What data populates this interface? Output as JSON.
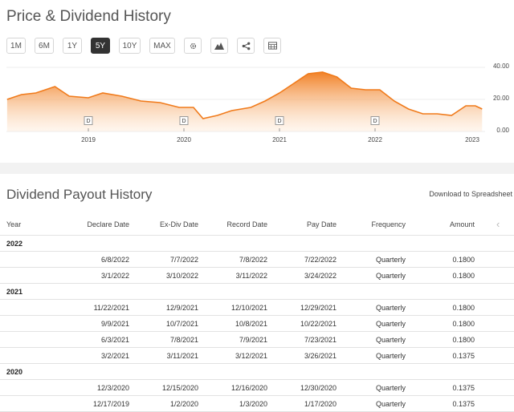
{
  "page": {
    "title": "Price & Dividend History",
    "section_title": "Dividend Payout History",
    "download": "Download to Spreadsheet"
  },
  "ranges": [
    "1M",
    "6M",
    "1Y",
    "5Y",
    "10Y",
    "MAX"
  ],
  "active_range": "5Y",
  "tool_icons": [
    "gear-icon",
    "mountain-icon",
    "share-icon",
    "table-icon"
  ],
  "colors": {
    "accent": "#f07a1a",
    "active": "#333333"
  },
  "chart_data": {
    "type": "area",
    "y_ticks": [
      "40.00",
      "20.00",
      "0.00"
    ],
    "ylim": [
      0,
      40
    ],
    "x_ticks": [
      "2019",
      "2020",
      "2021",
      "2022",
      "2023"
    ],
    "dividend_marker": "D",
    "dividend_dates": [
      2019.0,
      2020.0,
      2021.0,
      2022.0
    ],
    "x": [
      2018.15,
      2018.3,
      2018.45,
      2018.65,
      2018.8,
      2019.0,
      2019.15,
      2019.35,
      2019.55,
      2019.75,
      2019.95,
      2020.1,
      2020.2,
      2020.35,
      2020.5,
      2020.7,
      2020.85,
      2021.0,
      2021.15,
      2021.3,
      2021.45,
      2021.6,
      2021.75,
      2021.9,
      2022.05,
      2022.2,
      2022.35,
      2022.5,
      2022.65,
      2022.8,
      2022.95,
      2023.05,
      2023.12
    ],
    "y": [
      20,
      23,
      24,
      28,
      22,
      21,
      24,
      22,
      19,
      18,
      15,
      15,
      8,
      10,
      13,
      15,
      19,
      24,
      30,
      36,
      37,
      34,
      27,
      26,
      26,
      19,
      14,
      11,
      11,
      10,
      16,
      16,
      14
    ]
  },
  "table": {
    "headers": [
      "Year",
      "Declare Date",
      "Ex-Div Date",
      "Record Date",
      "Pay Date",
      "Frequency",
      "Amount"
    ],
    "nav_icon": "‹",
    "groups": [
      {
        "year": "2022",
        "rows": [
          [
            "6/8/2022",
            "7/7/2022",
            "7/8/2022",
            "7/22/2022",
            "Quarterly",
            "0.1800"
          ],
          [
            "3/1/2022",
            "3/10/2022",
            "3/11/2022",
            "3/24/2022",
            "Quarterly",
            "0.1800"
          ]
        ]
      },
      {
        "year": "2021",
        "rows": [
          [
            "11/22/2021",
            "12/9/2021",
            "12/10/2021",
            "12/29/2021",
            "Quarterly",
            "0.1800"
          ],
          [
            "9/9/2021",
            "10/7/2021",
            "10/8/2021",
            "10/22/2021",
            "Quarterly",
            "0.1800"
          ],
          [
            "6/3/2021",
            "7/8/2021",
            "7/9/2021",
            "7/23/2021",
            "Quarterly",
            "0.1800"
          ],
          [
            "3/2/2021",
            "3/11/2021",
            "3/12/2021",
            "3/26/2021",
            "Quarterly",
            "0.1375"
          ]
        ]
      },
      {
        "year": "2020",
        "rows": [
          [
            "12/3/2020",
            "12/15/2020",
            "12/16/2020",
            "12/30/2020",
            "Quarterly",
            "0.1375"
          ],
          [
            "12/17/2019",
            "1/2/2020",
            "1/3/2020",
            "1/17/2020",
            "Quarterly",
            "0.1375"
          ]
        ]
      }
    ]
  }
}
